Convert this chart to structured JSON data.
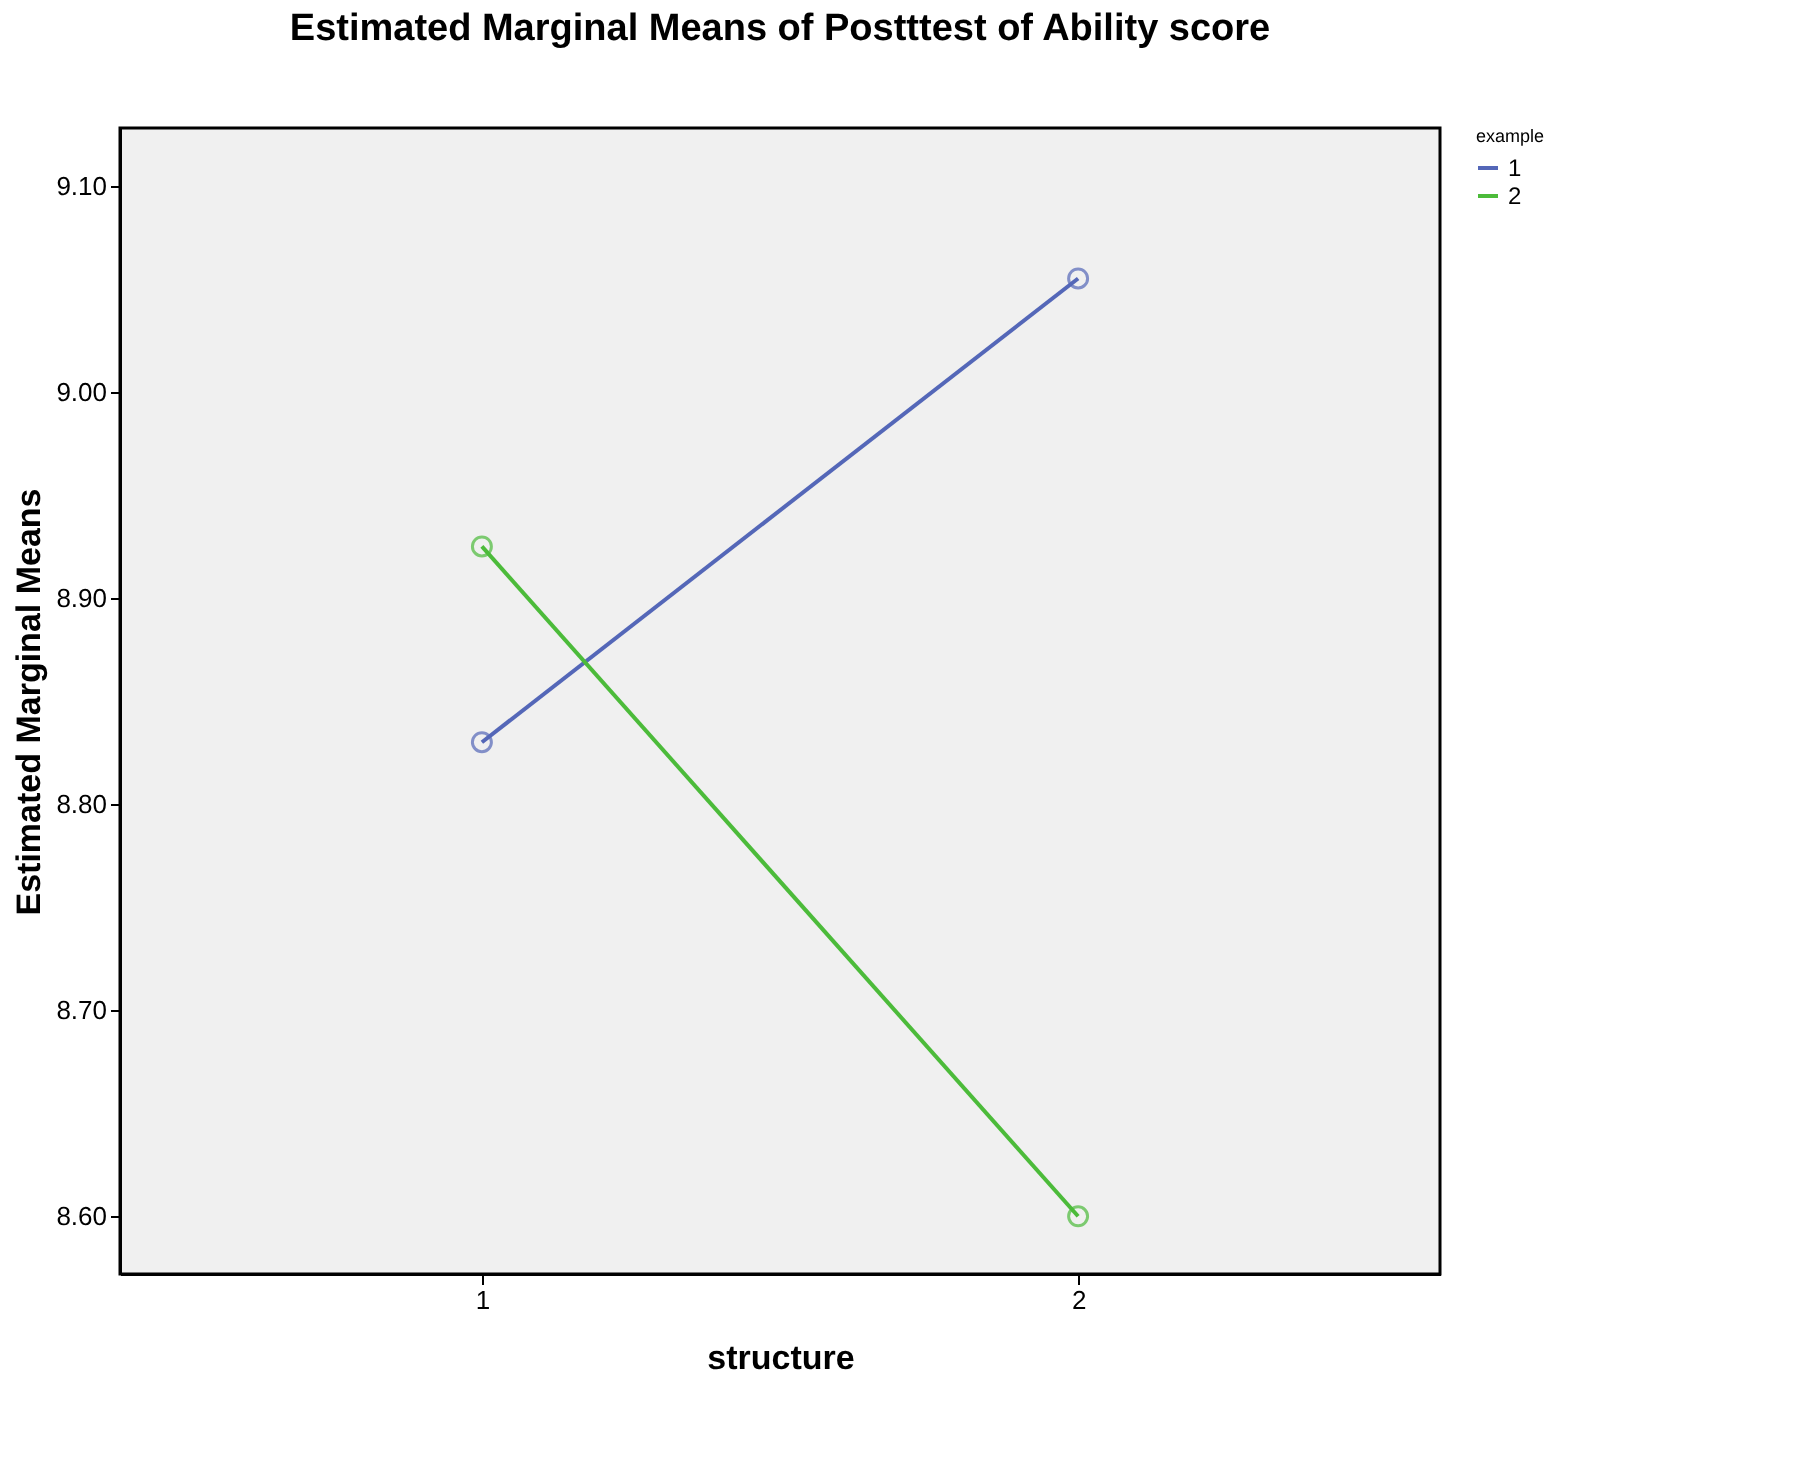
{
  "chart_data": {
    "type": "line",
    "title": "Estimated Marginal Means of Postttest of Ability score",
    "xlabel": "structure",
    "ylabel": "Estimated Marginal Means",
    "legend_title": "example",
    "categories": [
      "1",
      "2"
    ],
    "series": [
      {
        "name": "1",
        "color": "#5467b8",
        "values": [
          8.83,
          9.055
        ]
      },
      {
        "name": "2",
        "color": "#4cbb3a",
        "values": [
          8.925,
          8.6
        ]
      }
    ],
    "ylim": [
      8.572,
      9.128
    ],
    "yticks": [
      {
        "value": 8.6,
        "label": "8.60"
      },
      {
        "value": 8.7,
        "label": "8.70"
      },
      {
        "value": 8.8,
        "label": "8.80"
      },
      {
        "value": 8.9,
        "label": "8.90"
      },
      {
        "value": 9.0,
        "label": "9.00"
      },
      {
        "value": 9.1,
        "label": "9.10"
      }
    ],
    "marker": "circle",
    "line_style": "solid",
    "grid": false,
    "legend": "top right"
  }
}
